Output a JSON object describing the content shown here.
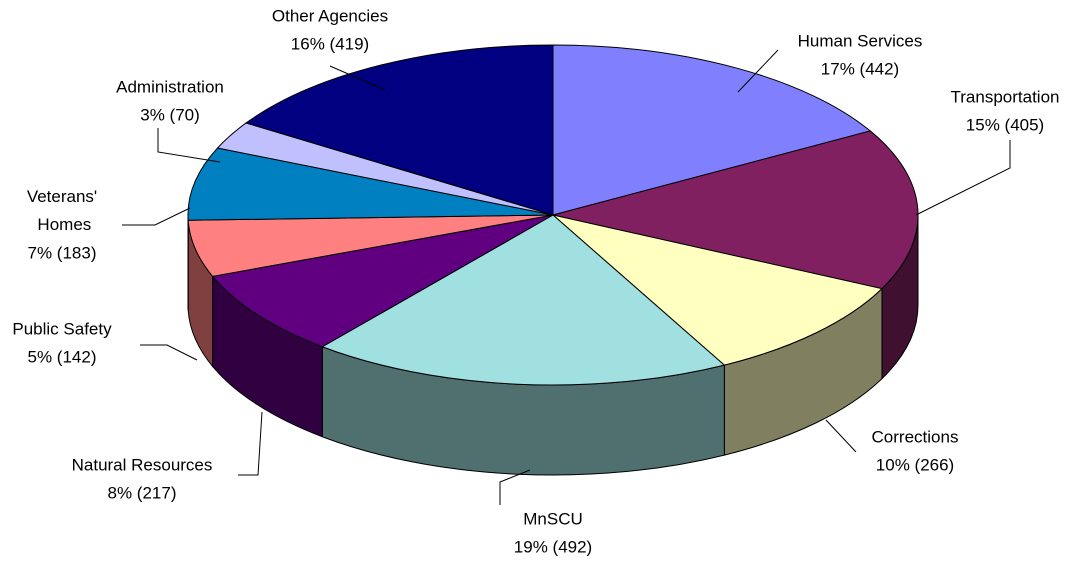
{
  "chart_data": {
    "type": "pie3d",
    "categories": [
      "Human Services",
      "Transportation",
      "Corrections",
      "MnSCU",
      "Natural Resources",
      "Public Safety",
      "Veterans' Homes",
      "Administration",
      "Other Agencies"
    ],
    "values": [
      442,
      405,
      266,
      492,
      217,
      142,
      183,
      70,
      419
    ],
    "value_labels": [
      "17% (442)",
      "15% (405)",
      "10% (266)",
      "19% (492)",
      "8% (217)",
      "5% (142)",
      "7% (183)",
      "3% (70)",
      "16% (419)"
    ],
    "colors": [
      "#8080ff",
      "#802060",
      "#ffffc0",
      "#a0e0e0",
      "#600080",
      "#ff8080",
      "#0080c0",
      "#c0c0ff",
      "#000080"
    ]
  }
}
